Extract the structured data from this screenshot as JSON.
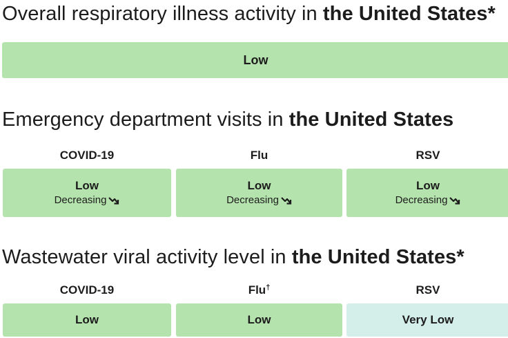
{
  "overall": {
    "heading_prefix": "Overall respiratory illness activity in ",
    "heading_place": "the United States*",
    "level": "Low"
  },
  "ed": {
    "heading_prefix": "Emergency department visits in ",
    "heading_place": "the United States",
    "columns": [
      {
        "label": "COVID-19",
        "level": "Low",
        "trend": "Decreasing",
        "trend_icon": "trend-down-icon"
      },
      {
        "label": "Flu",
        "level": "Low",
        "trend": "Decreasing",
        "trend_icon": "trend-down-icon"
      },
      {
        "label": "RSV",
        "level": "Low",
        "trend": "Decreasing",
        "trend_icon": "trend-down-icon"
      }
    ]
  },
  "wastewater": {
    "heading_prefix": "Wastewater viral activity level in ",
    "heading_place": "the United States*",
    "columns": [
      {
        "label": "COVID-19",
        "dagger": "",
        "level": "Low"
      },
      {
        "label": "Flu",
        "dagger": "†",
        "level": "Low"
      },
      {
        "label": "RSV",
        "dagger": "",
        "level": "Very Low"
      }
    ]
  },
  "colors": {
    "low": "#b5e3ad",
    "very_low": "#d4efea"
  }
}
